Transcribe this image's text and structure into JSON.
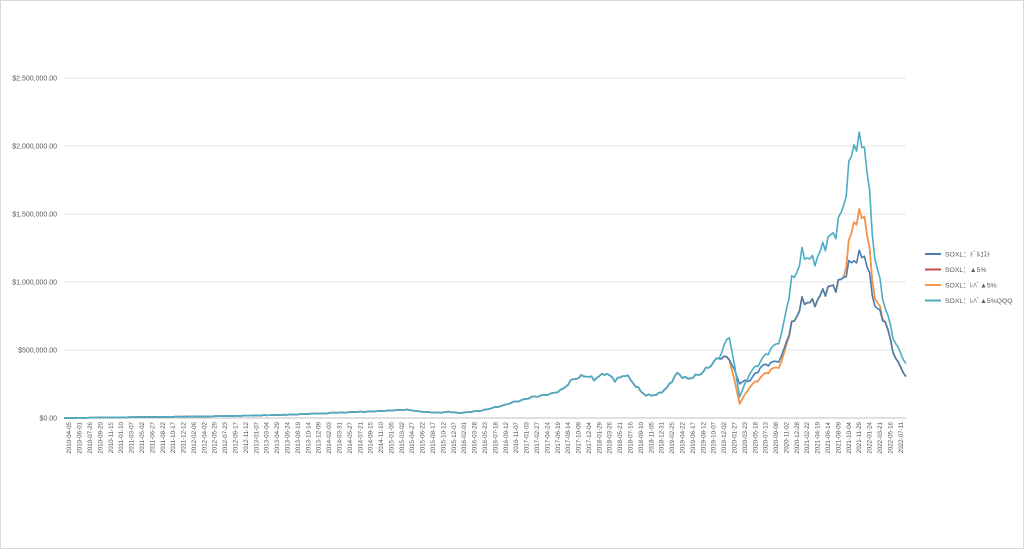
{
  "chart_data": {
    "type": "line",
    "title": "",
    "xlabel": "",
    "ylabel": "",
    "ylim": [
      0,
      2500000
    ],
    "y_ticks": [
      0,
      500000,
      1000000,
      1500000,
      2000000,
      2500000
    ],
    "y_tick_labels": [
      "$0.00",
      "$500,000.00",
      "$1,000,000.00",
      "$1,500,000.00",
      "$2,000,000.00",
      "$2,500,000.00"
    ],
    "x_tick_labels": [
      "2010-04-05",
      "2010-06-01",
      "2010-07-26",
      "2010-09-20",
      "2010-11-15",
      "2011-01-10",
      "2011-03-07",
      "2011-05-02",
      "2011-06-27",
      "2011-08-22",
      "2011-10-17",
      "2011-12-12",
      "2012-02-06",
      "2012-04-02",
      "2012-05-29",
      "2012-07-23",
      "2012-09-17",
      "2012-11-12",
      "2013-01-07",
      "2013-03-04",
      "2013-04-29",
      "2013-06-24",
      "2013-08-19",
      "2013-10-14",
      "2013-12-09",
      "2014-02-03",
      "2014-03-31",
      "2014-05-27",
      "2014-07-21",
      "2014-09-15",
      "2014-11-10",
      "2015-01-05",
      "2015-03-02",
      "2015-04-27",
      "2015-06-22",
      "2015-08-17",
      "2015-10-12",
      "2015-12-07",
      "2016-02-01",
      "2016-03-28",
      "2016-05-23",
      "2016-07-18",
      "2016-09-12",
      "2016-11-07",
      "2017-01-03",
      "2017-02-27",
      "2017-04-24",
      "2017-06-19",
      "2017-08-14",
      "2017-10-09",
      "2017-12-04",
      "2018-01-29",
      "2018-03-26",
      "2018-05-21",
      "2018-07-16",
      "2018-09-10",
      "2018-11-05",
      "2018-12-31",
      "2019-02-25",
      "2019-04-22",
      "2019-06-17",
      "2019-08-12",
      "2019-10-07",
      "2019-12-02",
      "2020-01-27",
      "2020-03-23",
      "2020-05-18",
      "2020-07-13",
      "2020-09-08",
      "2020-11-02",
      "2020-12-28",
      "2021-02-22",
      "2021-04-19",
      "2021-06-14",
      "2021-08-09",
      "2021-10-04",
      "2021-11-29",
      "2022-01-24",
      "2022-03-21",
      "2022-05-16",
      "2022-07-11"
    ],
    "grid": true,
    "legend_position": "right",
    "series": [
      {
        "name": "SOXL：ﾄﾞﾙｺｽﾄ",
        "color": "#4a7ead",
        "values": [
          0,
          800,
          1600,
          2500,
          3400,
          4300,
          5200,
          6200,
          7100,
          7700,
          8600,
          9500,
          10800,
          12000,
          12500,
          13400,
          14800,
          16200,
          17800,
          19800,
          21800,
          23600,
          25800,
          28900,
          31400,
          34100,
          38700,
          40500,
          44300,
          46800,
          49000,
          53700,
          57700,
          60900,
          50000,
          43600,
          38300,
          45600,
          36600,
          44300,
          52500,
          69400,
          88400,
          110000,
          131800,
          151700,
          168000,
          177700,
          215300,
          284000,
          315100,
          283900,
          332600,
          279100,
          319800,
          236400,
          164200,
          170800,
          218800,
          331200,
          282400,
          319500,
          367800,
          451000,
          435000,
          260400,
          275300,
          375300,
          400000,
          442200,
          680000,
          851500,
          841900,
          918000,
          968700,
          1027500,
          1180300,
          1195900,
          843900,
          700200,
          440600,
          305000
        ]
      },
      {
        "name": "SOXL：▲5%",
        "color": "#c0504d",
        "values": [
          0,
          800,
          1600,
          2500,
          3400,
          4300,
          5200,
          6200,
          7100,
          7700,
          8600,
          9500,
          10800,
          12000,
          12500,
          13400,
          14800,
          16200,
          17800,
          19800,
          21800,
          23600,
          25800,
          28900,
          31400,
          34100,
          38700,
          40500,
          44300,
          46800,
          49000,
          53700,
          57700,
          60900,
          50000,
          43600,
          38300,
          45600,
          36600,
          44300,
          52500,
          69400,
          88400,
          110000,
          131800,
          151700,
          168000,
          177700,
          215300,
          284000,
          315100,
          283900,
          332600,
          279100,
          319800,
          236400,
          164200,
          170800,
          218800,
          331200,
          282400,
          319500,
          367800,
          451000,
          435000,
          108000,
          230000,
          300000,
          350000,
          400000,
          680000,
          851500,
          841900,
          918000,
          968700,
          1027500,
          1469600,
          1489400,
          900000,
          700200,
          440600,
          305000
        ]
      },
      {
        "name": "SOXL：ﾚﾊﾞ▲5%",
        "color": "#f79646",
        "values": [
          0,
          800,
          1600,
          2500,
          3400,
          4300,
          5200,
          6200,
          7100,
          7700,
          8600,
          9500,
          10800,
          12000,
          12500,
          13400,
          14800,
          16200,
          17800,
          19800,
          21800,
          23600,
          25800,
          28900,
          31400,
          34100,
          38700,
          40500,
          44300,
          46800,
          49000,
          53700,
          57700,
          60900,
          50000,
          43600,
          38300,
          45600,
          36600,
          44300,
          52500,
          69400,
          88400,
          110000,
          131800,
          151700,
          168000,
          177700,
          215300,
          284000,
          315100,
          283900,
          332600,
          279100,
          319800,
          236400,
          164200,
          170800,
          218800,
          331200,
          282400,
          319500,
          367800,
          451000,
          435000,
          108000,
          230000,
          300000,
          350000,
          400000,
          680000,
          851500,
          841900,
          918000,
          968700,
          1027500,
          1469600,
          1489400,
          900000,
          700200,
          440600,
          305000
        ]
      },
      {
        "name": "SOXL：ﾚﾊﾞ▲5%QQQ",
        "color": "#4bacc6",
        "values": [
          0,
          800,
          1600,
          2500,
          3400,
          4300,
          5200,
          6200,
          7100,
          7700,
          8600,
          9500,
          10800,
          12000,
          12500,
          13400,
          14800,
          16200,
          17800,
          19800,
          21800,
          23600,
          25800,
          28900,
          31400,
          34100,
          38700,
          40500,
          44300,
          46800,
          49000,
          53700,
          57700,
          60900,
          50000,
          43600,
          38300,
          45600,
          36600,
          44300,
          52500,
          69400,
          88400,
          110000,
          131800,
          151700,
          168000,
          177700,
          215300,
          284000,
          315100,
          283900,
          332600,
          279100,
          319800,
          236400,
          164200,
          170800,
          218800,
          331200,
          282400,
          319500,
          367800,
          451000,
          600000,
          160000,
          330000,
          420000,
          500000,
          600000,
          1000000,
          1200000,
          1150000,
          1250000,
          1350000,
          1550000,
          2050000,
          2000000,
          1200000,
          800000,
          550000,
          400000
        ]
      }
    ]
  }
}
